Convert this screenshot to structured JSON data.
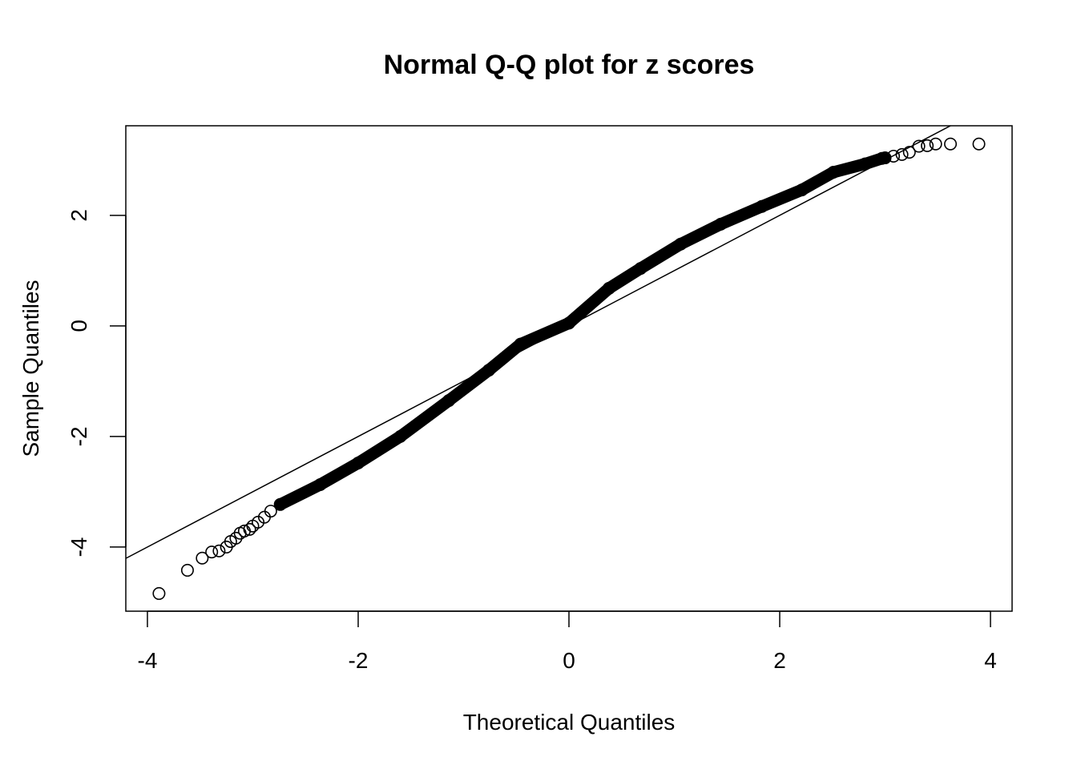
{
  "chart_data": {
    "type": "scatter",
    "title": "Normal Q-Q plot for z scores",
    "xlabel": "Theoretical Quantiles",
    "ylabel": "Sample Quantiles",
    "xlim": [
      -4.205,
      4.205
    ],
    "ylim": [
      -5.16,
      3.62
    ],
    "xticks": [
      -4,
      -2,
      0,
      2,
      4
    ],
    "xtick_labels": [
      "-4",
      "-2",
      "0",
      "2",
      "4"
    ],
    "yticks": [
      -4,
      -2,
      0,
      2
    ],
    "ytick_labels": [
      "-4",
      "-2",
      "0",
      "2"
    ],
    "grid": false,
    "reference_line": {
      "intercept": 0.0,
      "slope": 1.0
    },
    "points": [
      [
        -3.89,
        -4.84
      ],
      [
        -3.62,
        -4.42
      ],
      [
        -3.48,
        -4.2
      ],
      [
        -3.39,
        -4.09
      ],
      [
        -3.32,
        -4.07
      ],
      [
        -3.25,
        -4.0
      ],
      [
        -3.21,
        -3.9
      ],
      [
        -3.16,
        -3.84
      ],
      [
        -3.12,
        -3.75
      ],
      [
        -3.08,
        -3.71
      ],
      [
        -3.03,
        -3.68
      ],
      [
        -3.0,
        -3.62
      ],
      [
        -2.95,
        -3.55
      ],
      [
        -2.89,
        -3.46
      ],
      [
        -2.83,
        -3.35
      ],
      [
        -2.74,
        -3.23
      ],
      [
        -2.36,
        -2.87
      ],
      [
        -2.0,
        -2.48
      ],
      [
        -1.6,
        -2.0
      ],
      [
        -1.14,
        -1.35
      ],
      [
        -0.76,
        -0.8
      ],
      [
        -0.46,
        -0.33
      ],
      [
        0.0,
        0.05
      ],
      [
        0.38,
        0.68
      ],
      [
        0.68,
        1.04
      ],
      [
        1.06,
        1.48
      ],
      [
        1.44,
        1.84
      ],
      [
        1.83,
        2.16
      ],
      [
        2.21,
        2.46
      ],
      [
        2.51,
        2.78
      ],
      [
        2.81,
        2.93
      ],
      [
        2.97,
        3.03
      ],
      [
        3.0,
        3.04
      ],
      [
        3.08,
        3.07
      ],
      [
        3.16,
        3.1
      ],
      [
        3.23,
        3.14
      ],
      [
        3.32,
        3.25
      ],
      [
        3.4,
        3.26
      ],
      [
        3.48,
        3.29
      ],
      [
        3.62,
        3.29
      ],
      [
        3.89,
        3.29
      ]
    ],
    "colors": {
      "points": "#000000",
      "line": "#000000"
    }
  }
}
